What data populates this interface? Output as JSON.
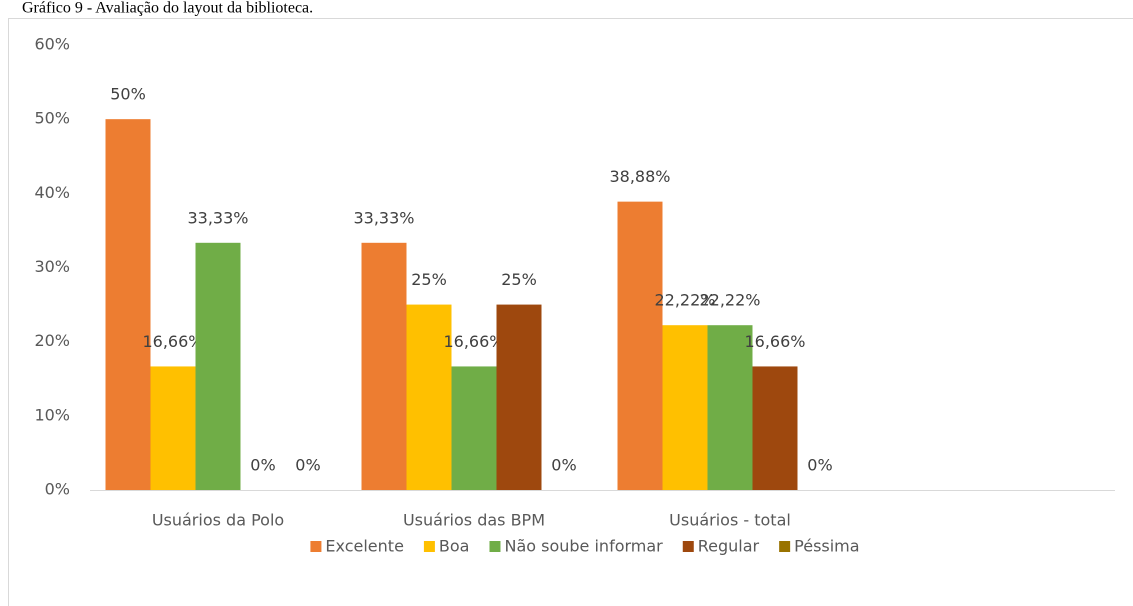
{
  "chart_data": {
    "type": "bar",
    "title": "Gráfico 9 - Avaliação do layout da biblioteca.",
    "categories": [
      "Usuários da Polo",
      "Usuários das BPM",
      "Usuários - total"
    ],
    "series": [
      {
        "name": "Excelente",
        "color": "#ed7d31",
        "values": [
          50,
          33.33,
          38.88
        ],
        "value_labels": [
          "50%",
          "33,33%",
          "38,88%"
        ]
      },
      {
        "name": "Boa",
        "color": "#ffc000",
        "values": [
          16.66,
          25,
          22.22
        ],
        "value_labels": [
          "16,66%",
          "25%",
          "22,22%"
        ]
      },
      {
        "name": "Não soube informar",
        "color": "#70ad47",
        "values": [
          33.33,
          16.66,
          22.22
        ],
        "value_labels": [
          "33,33%",
          "16,66%",
          "22,22%"
        ]
      },
      {
        "name": "Regular",
        "color": "#9e480e",
        "values": [
          0,
          25,
          16.66
        ],
        "value_labels": [
          "0%",
          "25%",
          "16,66%"
        ]
      },
      {
        "name": "Péssima",
        "color": "#997300",
        "values": [
          0,
          0,
          0
        ],
        "value_labels": [
          "0%",
          "0%",
          "0%"
        ]
      }
    ],
    "ylim": [
      0,
      60
    ],
    "yticks": [
      {
        "value": 0,
        "label": "0%"
      },
      {
        "value": 10,
        "label": "10%"
      },
      {
        "value": 20,
        "label": "20%"
      },
      {
        "value": 30,
        "label": "30%"
      },
      {
        "value": 40,
        "label": "40%"
      },
      {
        "value": 50,
        "label": "50%"
      },
      {
        "value": 60,
        "label": "60%"
      }
    ],
    "legend": "bottom"
  }
}
